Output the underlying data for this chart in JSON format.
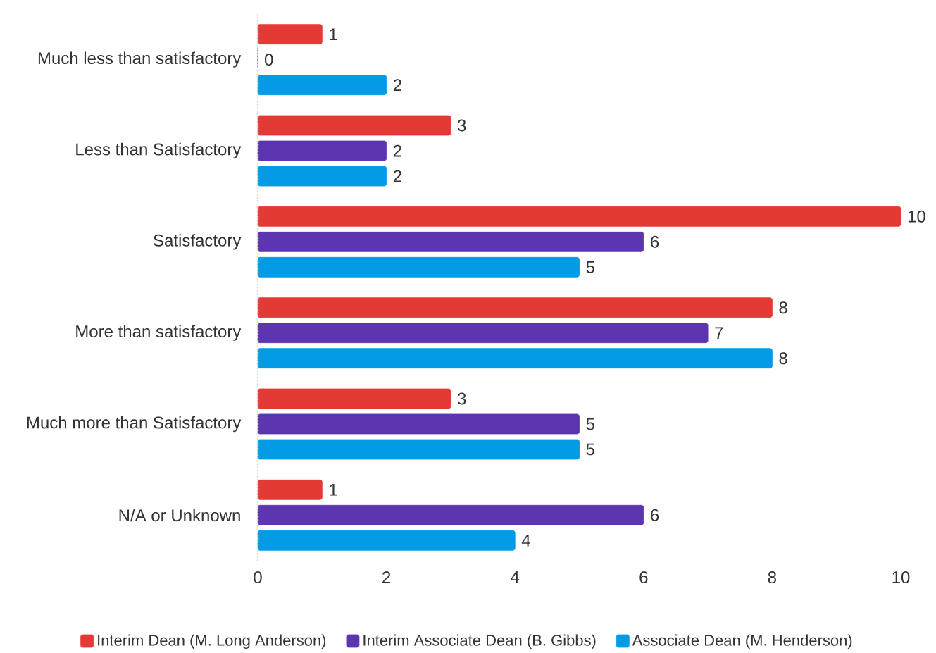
{
  "chart_data": {
    "type": "bar",
    "orientation": "horizontal",
    "categories": [
      "Much less than satisfactory",
      "Less than Satisfactory",
      "Satisfactory",
      "More than satisfactory",
      "Much more than Satisfactory",
      "N/A or Unknown"
    ],
    "series": [
      {
        "name": "Interim Dean (M. Long Anderson)",
        "color": "#e53935",
        "values": [
          1,
          3,
          10,
          8,
          3,
          1
        ]
      },
      {
        "name": "Interim Associate Dean (B. Gibbs)",
        "color": "#5e35b1",
        "values": [
          0,
          2,
          6,
          7,
          5,
          6
        ]
      },
      {
        "name": "Associate Dean (M. Henderson)",
        "color": "#039be5",
        "values": [
          2,
          2,
          5,
          8,
          5,
          4
        ]
      }
    ],
    "xlim": [
      0,
      10
    ],
    "xticks": [
      0,
      2,
      4,
      6,
      8,
      10
    ],
    "data_labels": true,
    "grid": false,
    "legend": "bottom"
  }
}
